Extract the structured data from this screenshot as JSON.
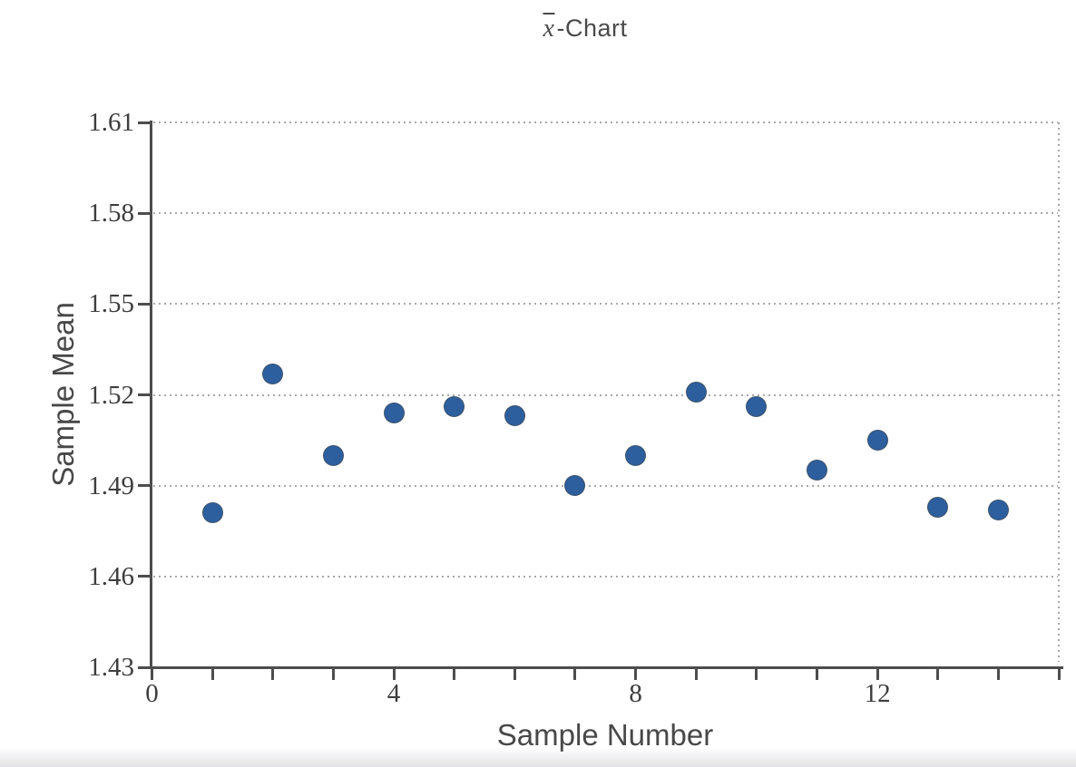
{
  "title": {
    "variable": "x",
    "rest": "-Chart"
  },
  "colors": {
    "point_fill": "#2d5f9e",
    "point_edge": "#484848",
    "axis": "#4d4d4d",
    "grid": "#a8a8a8",
    "title_text": "#4a4a4a",
    "tick_text": "#3d3d3d"
  },
  "chart_data": {
    "type": "scatter",
    "title": "x̄-Chart",
    "xlabel": "Sample Number",
    "ylabel": "Sample Mean",
    "x": [
      1,
      2,
      3,
      4,
      5,
      6,
      7,
      8,
      9,
      10,
      11,
      12,
      13,
      14
    ],
    "y": [
      1.481,
      1.527,
      1.5,
      1.514,
      1.516,
      1.513,
      1.49,
      1.5,
      1.521,
      1.516,
      1.495,
      1.505,
      1.483,
      1.482
    ],
    "xlim": [
      0,
      15
    ],
    "ylim": [
      1.43,
      1.61
    ],
    "x_major_ticks": [
      0,
      4,
      8,
      12
    ],
    "x_minor_tick_step": 1,
    "y_ticks": [
      1.43,
      1.46,
      1.49,
      1.52,
      1.55,
      1.58,
      1.61
    ],
    "grid": "horizontal dotted, dotted top and right frame",
    "legend": "none",
    "marker": "filled circle"
  }
}
